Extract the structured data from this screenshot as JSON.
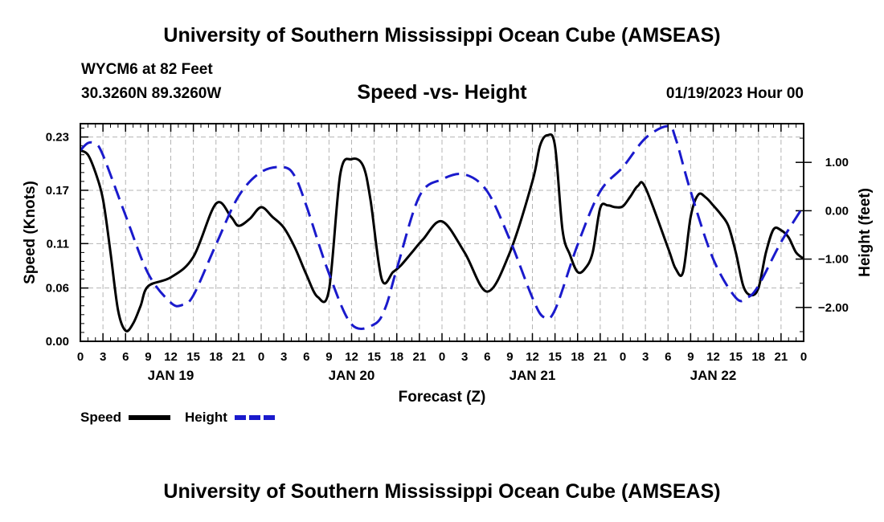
{
  "header": {
    "title": "University of Southern Mississippi Ocean Cube (AMSEAS)",
    "station": "WYCM6 at 82 Feet",
    "coords": "30.3260N  89.3260W",
    "subtitle": "Speed -vs- Height",
    "timestamp": "01/19/2023 Hour 00"
  },
  "footer": {
    "title": "University of Southern Mississippi Ocean Cube (AMSEAS)"
  },
  "legend": {
    "speed_label": "Speed",
    "height_label": "Height"
  },
  "colors": {
    "speed": "#000000",
    "height": "#1a1acc",
    "grid": "#b4b4b4"
  },
  "chart_data": {
    "type": "line",
    "xlabel": "Forecast (Z)",
    "ylabel": "Speed (Knots)",
    "y2label": "Height (feet)",
    "xlim": [
      0,
      96
    ],
    "ylim": [
      0,
      0.245
    ],
    "y2lim": [
      -2.7,
      1.8
    ],
    "x_tick_labels": [
      "0",
      "3",
      "6",
      "9",
      "12",
      "15",
      "18",
      "21",
      "0",
      "3",
      "6",
      "9",
      "12",
      "15",
      "18",
      "21",
      "0",
      "3",
      "6",
      "9",
      "12",
      "15",
      "18",
      "21",
      "0",
      "3",
      "6",
      "9",
      "12",
      "15",
      "18",
      "21",
      "0"
    ],
    "date_labels": [
      {
        "x": 12,
        "label": "JAN 19"
      },
      {
        "x": 36,
        "label": "JAN 20"
      },
      {
        "x": 60,
        "label": "JAN 21"
      },
      {
        "x": 84,
        "label": "JAN 22"
      }
    ],
    "y_ticks": [
      0.0,
      0.06,
      0.11,
      0.17,
      0.23
    ],
    "y_tick_labels": [
      "0.00",
      "0.06",
      "0.11",
      "0.17",
      "0.23"
    ],
    "y2_ticks": [
      -2,
      -1,
      0,
      1
    ],
    "y2_tick_labels": [
      "−2.00",
      "−1.00",
      "0.00",
      "1.00"
    ],
    "series": [
      {
        "name": "Speed",
        "axis": "left",
        "x": [
          0,
          1,
          2,
          3,
          4,
          5,
          6,
          7,
          8,
          9,
          12,
          15,
          18,
          20,
          21,
          22.5,
          24,
          25.5,
          27,
          28.5,
          30,
          31.5,
          33,
          34.5,
          36,
          37.5,
          38.5,
          40,
          41.5,
          42.5,
          44,
          45.5,
          48,
          51,
          54,
          57,
          60,
          61,
          62,
          63,
          64,
          65,
          66,
          67,
          68,
          69,
          70,
          71,
          72,
          73,
          74,
          75,
          78,
          79,
          80,
          81,
          82,
          83,
          84,
          85,
          86,
          87,
          88,
          89,
          90,
          91,
          92,
          93,
          94,
          95,
          96
        ],
        "y": [
          0.215,
          0.21,
          0.19,
          0.16,
          0.1,
          0.035,
          0.012,
          0.02,
          0.04,
          0.062,
          0.072,
          0.095,
          0.155,
          0.14,
          0.13,
          0.138,
          0.151,
          0.14,
          0.128,
          0.105,
          0.075,
          0.05,
          0.058,
          0.188,
          0.205,
          0.198,
          0.16,
          0.07,
          0.078,
          0.085,
          0.1,
          0.115,
          0.135,
          0.1,
          0.056,
          0.1,
          0.18,
          0.22,
          0.232,
          0.22,
          0.125,
          0.097,
          0.078,
          0.082,
          0.1,
          0.15,
          0.153,
          0.151,
          0.152,
          0.163,
          0.175,
          0.173,
          0.105,
          0.082,
          0.078,
          0.14,
          0.165,
          0.162,
          0.153,
          0.143,
          0.13,
          0.1,
          0.062,
          0.052,
          0.06,
          0.1,
          0.126,
          0.125,
          0.117,
          0.1,
          0.093
        ]
      },
      {
        "name": "Height",
        "axis": "right",
        "x": [
          0,
          1,
          2,
          3,
          6,
          9,
          12,
          13.5,
          15,
          18,
          21,
          24,
          27,
          28.5,
          30,
          33,
          36,
          39,
          40.5,
          42,
          45,
          48,
          51,
          54,
          57,
          60,
          61.5,
          63,
          66,
          69,
          72,
          75,
          78,
          79,
          81,
          84,
          87,
          88.5,
          90,
          93,
          96
        ],
        "y": [
          1.25,
          1.4,
          1.38,
          1.15,
          -0.1,
          -1.3,
          -1.9,
          -1.95,
          -1.75,
          -0.7,
          0.3,
          0.8,
          0.9,
          0.7,
          0.1,
          -1.3,
          -2.35,
          -2.35,
          -2.0,
          -1.2,
          0.3,
          0.65,
          0.75,
          0.4,
          -0.6,
          -1.8,
          -2.2,
          -2.05,
          -0.7,
          0.4,
          0.9,
          1.5,
          1.75,
          1.5,
          0.4,
          -1.0,
          -1.8,
          -1.8,
          -1.55,
          -0.65,
          0.1
        ]
      }
    ]
  }
}
